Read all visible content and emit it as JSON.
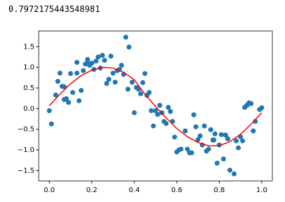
{
  "output_text": "0.7972175443548981",
  "chart_data": {
    "type": "scatter",
    "xlim": [
      -0.05,
      1.05
    ],
    "ylim": [
      -1.75,
      1.88
    ],
    "xticks": [
      {
        "value": 0,
        "label": "0.0"
      },
      0.2,
      0.4,
      0.6,
      0.8,
      {
        "value": 1,
        "label": "1.0"
      }
    ],
    "yticks": [
      {
        "value": -1.5,
        "label": "−1.5"
      },
      {
        "value": -1,
        "label": "−1.0"
      },
      {
        "value": -0.5,
        "label": "−0.5"
      },
      {
        "value": 0,
        "label": "0.0"
      },
      0.5,
      {
        "value": 1,
        "label": "1.0"
      },
      1.5
    ],
    "series": [
      {
        "type": "scatter",
        "color": "#1f77b4",
        "x": [
          0.0,
          0.01,
          0.03,
          0.04,
          0.05,
          0.06,
          0.07,
          0.07,
          0.08,
          0.09,
          0.1,
          0.11,
          0.13,
          0.13,
          0.14,
          0.15,
          0.16,
          0.17,
          0.18,
          0.18,
          0.19,
          0.2,
          0.21,
          0.22,
          0.23,
          0.24,
          0.25,
          0.26,
          0.27,
          0.28,
          0.29,
          0.3,
          0.31,
          0.32,
          0.33,
          0.34,
          0.35,
          0.36,
          0.37,
          0.375,
          0.39,
          0.4,
          0.41,
          0.42,
          0.43,
          0.44,
          0.45,
          0.46,
          0.47,
          0.48,
          0.49,
          0.5,
          0.51,
          0.52,
          0.53,
          0.54,
          0.55,
          0.56,
          0.57,
          0.58,
          0.59,
          0.6,
          0.61,
          0.62,
          0.64,
          0.65,
          0.66,
          0.67,
          0.68,
          0.69,
          0.7,
          0.71,
          0.72,
          0.73,
          0.74,
          0.75,
          0.76,
          0.77,
          0.775,
          0.78,
          0.79,
          0.8,
          0.81,
          0.82,
          0.83,
          0.84,
          0.85,
          0.87,
          0.88,
          0.89,
          0.9,
          0.91,
          0.92,
          0.93,
          0.94,
          0.95,
          0.96,
          0.97,
          0.99,
          1.0
        ],
        "values": [
          -0.05,
          -0.37,
          0.33,
          0.66,
          0.86,
          0.54,
          0.22,
          0.53,
          0.24,
          0.15,
          0.85,
          0.39,
          1.12,
          0.86,
          0.19,
          0.44,
          0.92,
          1.08,
          1.19,
          1.1,
          1.05,
          1.1,
          0.95,
          1.15,
          1.25,
          0.98,
          1.29,
          1.17,
          0.61,
          0.71,
          1.27,
          0.86,
          0.64,
          0.92,
          0.95,
          1.05,
          0.83,
          1.73,
          0.47,
          1.49,
          0.64,
          -0.1,
          0.51,
          0.47,
          0.36,
          0.63,
          0.85,
          0.32,
          0.39,
          -0.05,
          -0.42,
          -0.05,
          -0.14,
          0.08,
          -0.1,
          -0.31,
          -0.36,
          0.03,
          -0.07,
          -0.31,
          -0.69,
          -1.05,
          -1.0,
          -0.98,
          -0.54,
          -0.98,
          -1.07,
          -1.07,
          -0.15,
          -0.44,
          -0.75,
          -0.66,
          -0.88,
          -0.42,
          -1.03,
          -0.98,
          -0.51,
          -0.76,
          -0.76,
          -0.61,
          -1.32,
          -0.88,
          -0.63,
          -1.22,
          -0.64,
          -0.73,
          -1.49,
          -1.58,
          -0.78,
          -0.95,
          -0.68,
          -0.78,
          0.03,
          0.08,
          0.14,
          0.12,
          -0.54,
          -0.31,
          -0.02,
          0.02
        ]
      },
      {
        "type": "line",
        "color": "#ff0000",
        "x": [
          0,
          0.05,
          0.1,
          0.15,
          0.2,
          0.25,
          0.3,
          0.35,
          0.4,
          0.45,
          0.5,
          0.55,
          0.6,
          0.65,
          0.7,
          0.75,
          0.8,
          0.85,
          0.9,
          0.95,
          1.0
        ],
        "values": [
          0.07,
          0.35,
          0.6,
          0.8,
          0.93,
          1.0,
          0.98,
          0.88,
          0.7,
          0.35,
          0.05,
          -0.22,
          -0.48,
          -0.68,
          -0.82,
          -0.9,
          -0.9,
          -0.8,
          -0.62,
          -0.38,
          -0.1
        ]
      }
    ]
  }
}
